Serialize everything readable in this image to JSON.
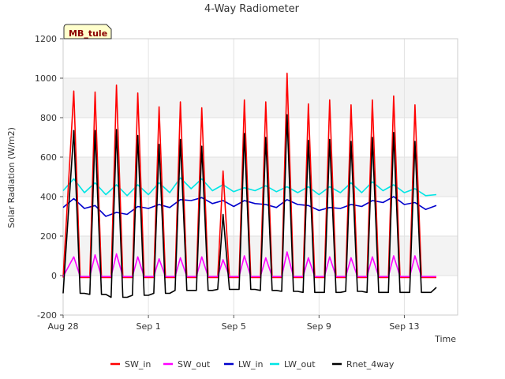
{
  "chart_data": {
    "type": "line",
    "title": "4-Way Radiometer",
    "xlabel": "Time",
    "ylabel": "Solar Radiation (W/m2)",
    "badge": "MB_tule",
    "ylim": [
      -200,
      1200
    ],
    "yticks": [
      -200,
      0,
      200,
      400,
      600,
      800,
      1000,
      1200
    ],
    "xlim": [
      0,
      18.5
    ],
    "xticks": [
      {
        "label": "Aug 28",
        "day": 0
      },
      {
        "label": "Sep 1",
        "day": 4
      },
      {
        "label": "Sep 5",
        "day": 8
      },
      {
        "label": "Sep 9",
        "day": 12
      },
      {
        "label": "Sep 13",
        "day": 16
      }
    ],
    "grid": true,
    "legend_position": "bottom",
    "daily_peaks": {
      "SW_in": [
        935,
        930,
        965,
        925,
        855,
        880,
        850,
        530,
        890,
        880,
        1025,
        870,
        890,
        865,
        890,
        910,
        865
      ],
      "SW_out": [
        95,
        105,
        110,
        95,
        85,
        90,
        95,
        80,
        100,
        90,
        120,
        90,
        95,
        90,
        95,
        100,
        100
      ],
      "Rnet_4way": [
        735,
        735,
        740,
        710,
        665,
        690,
        655,
        310,
        720,
        700,
        815,
        685,
        690,
        680,
        700,
        725,
        680
      ],
      "Rnet_night": [
        -90,
        -95,
        -110,
        -100,
        -90,
        -75,
        -75,
        -70,
        -70,
        -75,
        -80,
        -85,
        -85,
        -80,
        -85,
        -85,
        -85
      ]
    },
    "series": [
      {
        "name": "SW_in",
        "color": "#ff0000",
        "x": [
          0,
          0.5,
          0.8,
          1.0,
          1.25,
          1.5,
          1.8,
          2.0,
          2.25,
          2.5,
          2.8,
          3.0,
          3.25,
          3.5,
          3.8,
          4.0,
          4.25,
          4.5,
          4.8,
          5.0,
          5.25,
          5.5,
          5.8,
          6.0,
          6.25,
          6.5,
          6.8,
          7.0,
          7.25,
          7.5,
          7.8,
          8.0,
          8.25,
          8.5,
          8.8,
          9.0,
          9.25,
          9.5,
          9.8,
          10.0,
          10.25,
          10.5,
          10.8,
          11.0,
          11.25,
          11.5,
          11.8,
          12.0,
          12.25,
          12.5,
          12.8,
          13.0,
          13.25,
          13.5,
          13.8,
          14.0,
          14.25,
          14.5,
          14.8,
          15.0,
          15.25,
          15.5,
          15.8,
          16.0,
          16.25,
          16.5,
          16.8,
          17.0,
          17.25,
          17.5
        ],
        "y": [
          -10,
          935,
          -10,
          -10,
          -10,
          930,
          -10,
          -10,
          -10,
          965,
          -10,
          -10,
          -10,
          925,
          -10,
          -10,
          -10,
          855,
          -10,
          -10,
          -10,
          880,
          -10,
          -10,
          -10,
          850,
          -10,
          -10,
          -10,
          530,
          -10,
          -10,
          -10,
          890,
          -10,
          -10,
          -10,
          880,
          -10,
          -10,
          -10,
          1025,
          -10,
          -10,
          -10,
          870,
          -10,
          -10,
          -10,
          890,
          -10,
          -10,
          -10,
          865,
          -10,
          -10,
          -10,
          890,
          -10,
          -10,
          -10,
          910,
          -10,
          -10,
          -10,
          865,
          -10,
          -10,
          -10,
          -10
        ]
      },
      {
        "name": "SW_out",
        "color": "#ff00ff",
        "x": [
          0,
          0.5,
          0.8,
          1.0,
          1.25,
          1.5,
          1.8,
          2.0,
          2.25,
          2.5,
          2.8,
          3.0,
          3.25,
          3.5,
          3.8,
          4.0,
          4.25,
          4.5,
          4.8,
          5.0,
          5.25,
          5.5,
          5.8,
          6.0,
          6.25,
          6.5,
          6.8,
          7.0,
          7.25,
          7.5,
          7.8,
          8.0,
          8.25,
          8.5,
          8.8,
          9.0,
          9.25,
          9.5,
          9.8,
          10.0,
          10.25,
          10.5,
          10.8,
          11.0,
          11.25,
          11.5,
          11.8,
          12.0,
          12.25,
          12.5,
          12.8,
          13.0,
          13.25,
          13.5,
          13.8,
          14.0,
          14.25,
          14.5,
          14.8,
          15.0,
          15.25,
          15.5,
          15.8,
          16.0,
          16.25,
          16.5,
          16.8,
          17.0,
          17.25,
          17.5
        ],
        "y": [
          -5,
          95,
          -5,
          -5,
          -5,
          105,
          -5,
          -5,
          -5,
          110,
          -5,
          -5,
          -5,
          95,
          -5,
          -5,
          -5,
          85,
          -5,
          -5,
          -5,
          90,
          -5,
          -5,
          -5,
          95,
          -5,
          -5,
          -5,
          80,
          -5,
          -5,
          -5,
          100,
          -5,
          -5,
          -5,
          90,
          -5,
          -5,
          -5,
          120,
          -5,
          -5,
          -5,
          90,
          -5,
          -5,
          -5,
          95,
          -5,
          -5,
          -5,
          90,
          -5,
          -5,
          -5,
          95,
          -5,
          -5,
          -5,
          100,
          -5,
          -5,
          -5,
          100,
          -5,
          -5,
          -5,
          -5
        ]
      },
      {
        "name": "LW_in",
        "color": "#0000cc",
        "x": [
          0,
          0.5,
          1.0,
          1.5,
          2.0,
          2.5,
          3.0,
          3.5,
          4.0,
          4.5,
          5.0,
          5.5,
          6.0,
          6.5,
          7.0,
          7.5,
          8.0,
          8.5,
          9.0,
          9.5,
          10.0,
          10.5,
          11.0,
          11.5,
          12.0,
          12.5,
          13.0,
          13.5,
          14.0,
          14.5,
          15.0,
          15.5,
          16.0,
          16.5,
          17.0,
          17.5
        ],
        "y": [
          345,
          390,
          340,
          355,
          300,
          320,
          310,
          350,
          340,
          360,
          345,
          385,
          380,
          395,
          365,
          380,
          350,
          380,
          365,
          360,
          345,
          385,
          360,
          355,
          330,
          345,
          340,
          360,
          350,
          380,
          370,
          400,
          360,
          370,
          335,
          355
        ]
      },
      {
        "name": "LW_out",
        "color": "#00e5e5",
        "x": [
          0,
          0.5,
          1.0,
          1.5,
          2.0,
          2.5,
          3.0,
          3.5,
          4.0,
          4.5,
          5.0,
          5.5,
          6.0,
          6.5,
          7.0,
          7.5,
          8.0,
          8.5,
          9.0,
          9.5,
          10.0,
          10.5,
          11.0,
          11.5,
          12.0,
          12.5,
          13.0,
          13.5,
          14.0,
          14.5,
          15.0,
          15.5,
          16.0,
          16.5,
          17.0,
          17.5
        ],
        "y": [
          430,
          490,
          420,
          470,
          410,
          460,
          405,
          460,
          410,
          470,
          420,
          495,
          440,
          490,
          430,
          460,
          425,
          445,
          430,
          455,
          425,
          450,
          420,
          450,
          410,
          450,
          420,
          470,
          420,
          475,
          430,
          460,
          420,
          440,
          405,
          410
        ]
      },
      {
        "name": "Rnet_4way",
        "color": "#000000",
        "x": [
          0,
          0.5,
          0.8,
          1.0,
          1.25,
          1.5,
          1.8,
          2.0,
          2.25,
          2.5,
          2.8,
          3.0,
          3.25,
          3.5,
          3.8,
          4.0,
          4.25,
          4.5,
          4.8,
          5.0,
          5.25,
          5.5,
          5.8,
          6.0,
          6.25,
          6.5,
          6.8,
          7.0,
          7.25,
          7.5,
          7.8,
          8.0,
          8.25,
          8.5,
          8.8,
          9.0,
          9.25,
          9.5,
          9.8,
          10.0,
          10.25,
          10.5,
          10.8,
          11.0,
          11.25,
          11.5,
          11.8,
          12.0,
          12.25,
          12.5,
          12.8,
          13.0,
          13.25,
          13.5,
          13.8,
          14.0,
          14.25,
          14.5,
          14.8,
          15.0,
          15.25,
          15.5,
          15.8,
          16.0,
          16.25,
          16.5,
          16.8,
          17.0,
          17.25,
          17.5
        ],
        "y": [
          -90,
          735,
          -90,
          -90,
          -95,
          735,
          -95,
          -95,
          -110,
          740,
          -110,
          -110,
          -100,
          710,
          -100,
          -100,
          -90,
          665,
          -90,
          -90,
          -75,
          690,
          -75,
          -75,
          -75,
          655,
          -75,
          -75,
          -70,
          310,
          -70,
          -70,
          -70,
          720,
          -70,
          -70,
          -75,
          700,
          -75,
          -75,
          -80,
          815,
          -80,
          -80,
          -85,
          685,
          -85,
          -85,
          -85,
          690,
          -85,
          -85,
          -80,
          680,
          -80,
          -80,
          -85,
          700,
          -85,
          -85,
          -85,
          725,
          -85,
          -85,
          -85,
          680,
          -85,
          -85,
          -85,
          -60
        ]
      }
    ]
  }
}
